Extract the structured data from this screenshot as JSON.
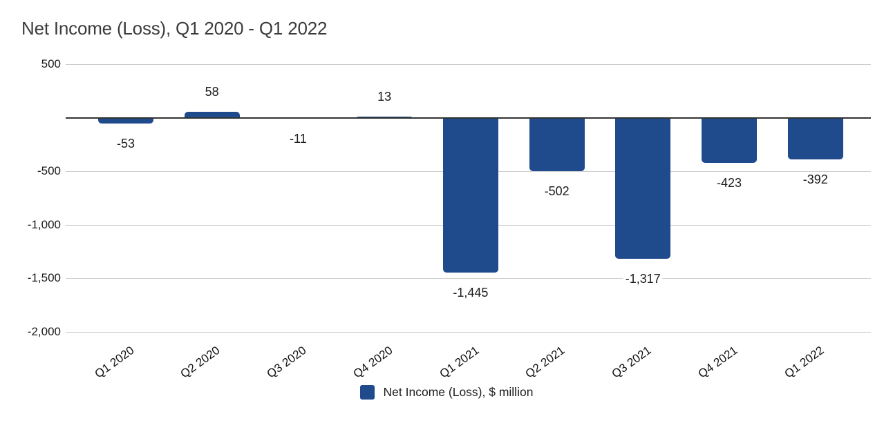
{
  "chart_data": {
    "type": "bar",
    "title": "Net Income (Loss), Q1 2020 - Q1 2022",
    "categories": [
      "Q1 2020",
      "Q2 2020",
      "Q3 2020",
      "Q4 2020",
      "Q1 2021",
      "Q2 2021",
      "Q3 2021",
      "Q4 2021",
      "Q1 2022"
    ],
    "series": [
      {
        "name": "Net Income (Loss), $ million",
        "values": [
          -53,
          58,
          -11,
          13,
          -1445,
          -502,
          -1317,
          -423,
          -392
        ],
        "value_labels": [
          "-53",
          "58",
          "-11",
          "13",
          "-1,445",
          "-502",
          "-1,317",
          "-423",
          "-392"
        ]
      }
    ],
    "xlabel": "",
    "ylabel": "",
    "y_axis": {
      "ticks": [
        500,
        -500,
        -1000,
        -1500,
        -2000
      ],
      "tick_labels": [
        "500",
        "-500",
        "-1,000",
        "-1,500",
        "-2,000"
      ],
      "ylim": [
        -2000,
        500
      ],
      "zero_baseline": true
    },
    "grid": true,
    "legend": {
      "position": "bottom",
      "entries": [
        {
          "label": "Net Income (Loss), $ million",
          "color": "#1f4a8c"
        }
      ]
    },
    "colors": {
      "bar": "#1f4a8c",
      "gridline": "#cdcdcd",
      "zero_line": "#333333",
      "title_text": "#3b3b3b",
      "label_text": "#1c1c1c",
      "background": "#ffffff"
    }
  }
}
